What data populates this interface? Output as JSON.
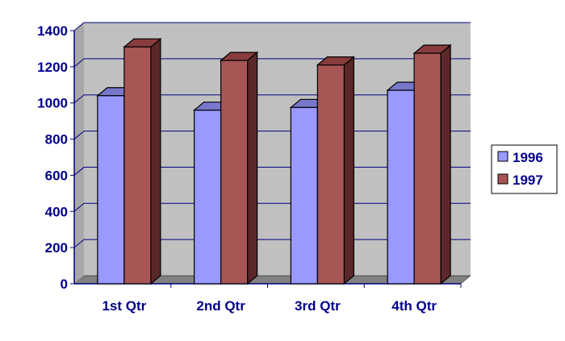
{
  "chart_data": {
    "type": "bar",
    "title": "",
    "xlabel": "",
    "ylabel": "",
    "categories": [
      "1st Qtr",
      "2nd Qtr",
      "3rd Qtr",
      "4th Qtr"
    ],
    "series": [
      {
        "name": "1996",
        "values": [
          1040,
          960,
          975,
          1070
        ],
        "color": "#9999FF",
        "top": "#7777CC",
        "side": "#6666AA"
      },
      {
        "name": "1997",
        "values": [
          1310,
          1235,
          1210,
          1275
        ],
        "color": "#A85555",
        "top": "#883C3C",
        "side": "#5A2828"
      }
    ],
    "ylim": [
      0,
      1400
    ],
    "yticks": [
      "0",
      "200",
      "400",
      "600",
      "800",
      "1000",
      "1200",
      "1400"
    ],
    "grid": true,
    "legend": "right",
    "wall_color": "#C0C0C0",
    "axis_color": "#000080"
  }
}
